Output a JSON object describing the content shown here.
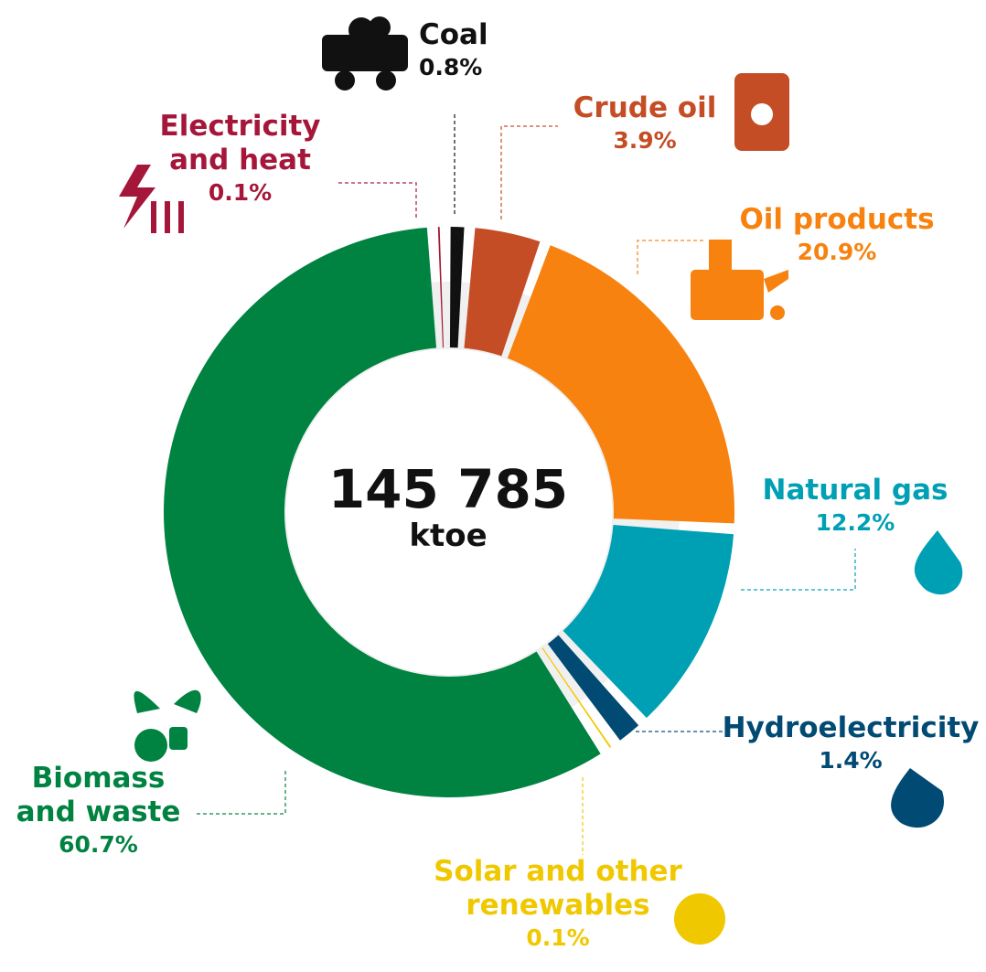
{
  "chart_data": {
    "type": "pie",
    "categories": [
      "Coal",
      "Crude oil",
      "Oil products",
      "Natural gas",
      "Hydroelectricity",
      "Solar and other renewables",
      "Biomass and waste",
      "Electricity and heat"
    ],
    "values": [
      0.8,
      3.9,
      20.9,
      12.2,
      1.4,
      0.1,
      60.7,
      0.1
    ],
    "value_labels": [
      "0.8%",
      "3.9%",
      "20.9%",
      "12.2%",
      "1.4%",
      "0.1%",
      "60.7%",
      "0.1%"
    ],
    "colors": [
      "#111111",
      "#c44d25",
      "#f7820f",
      "#00a0b4",
      "#004a73",
      "#f0c800",
      "#008341",
      "#a5173a"
    ],
    "center_label": "145 785",
    "center_unit": "ktoe"
  }
}
